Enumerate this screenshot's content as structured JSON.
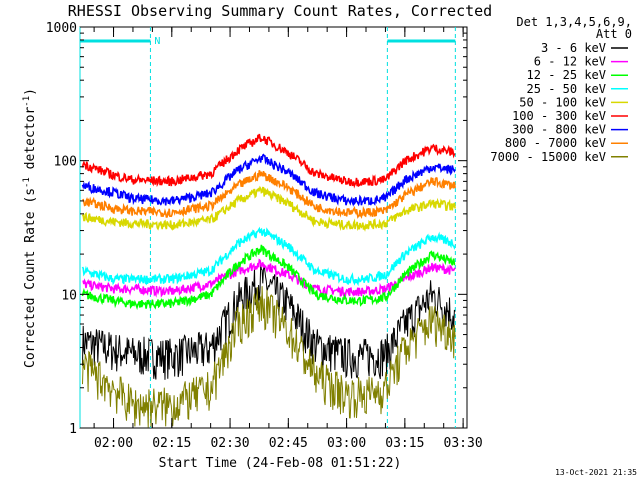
{
  "chart_data": {
    "type": "line",
    "title": "RHESSI Observing Summary Count Rates, Corrected",
    "xlabel": "Start Time (24-Feb-08 01:51:22)",
    "ylabel": "Corrected Count Rate (s⁻¹ detector⁻¹)",
    "ylabel_parts": {
      "a": "Corrected Count Rate (s",
      "sup1": "-1",
      "b": " detector",
      "sup2": "-1",
      "c": ")"
    },
    "y_scale": "log",
    "ylim": [
      1,
      1000
    ],
    "xlim": [
      "01:51:22",
      "03:31:00"
    ],
    "y_ticks": [
      "1",
      "10",
      "100",
      "1000"
    ],
    "x_ticks": [
      "02:00",
      "02:15",
      "02:30",
      "02:45",
      "03:00",
      "03:15",
      "03:30"
    ],
    "legend": {
      "placement": "right",
      "header": [
        "Det 1,3,4,5,6,9,",
        "Att 0"
      ]
    },
    "timestamp": "13-Oct-2021 21:35",
    "annotations": [
      {
        "label": "N",
        "type": "night",
        "x_start": "01:51:22",
        "x_end": "02:09:30"
      },
      {
        "label": "",
        "type": "night",
        "x_start": "03:10:30",
        "x_end": "03:28:00"
      }
    ],
    "series": [
      {
        "name": "3 - 6 keV",
        "color": "#000000",
        "x": [
          "01:52",
          "02:00",
          "02:05",
          "02:15",
          "02:25",
          "02:32",
          "02:38",
          "02:45",
          "02:52",
          "03:00",
          "03:05",
          "03:10",
          "03:15",
          "03:22",
          "03:28"
        ],
        "values": [
          4.5,
          3.9,
          3.6,
          3.5,
          4.0,
          9.0,
          13.0,
          8.5,
          4.2,
          3.5,
          3.5,
          3.6,
          6.0,
          10.0,
          7.0
        ]
      },
      {
        "name": "6 - 12 keV",
        "color": "#ff00ff",
        "x": [
          "01:52",
          "02:00",
          "02:05",
          "02:15",
          "02:25",
          "02:32",
          "02:38",
          "02:45",
          "02:52",
          "03:00",
          "03:05",
          "03:10",
          "03:15",
          "03:22",
          "03:28"
        ],
        "values": [
          12.0,
          11.0,
          11.0,
          10.5,
          12.0,
          15.0,
          17.0,
          14.0,
          11.0,
          10.5,
          10.5,
          11.0,
          13.0,
          16.0,
          15.0
        ]
      },
      {
        "name": "12 - 25 keV",
        "color": "#00ff00",
        "x": [
          "01:52",
          "02:00",
          "02:05",
          "02:15",
          "02:25",
          "02:32",
          "02:38",
          "02:45",
          "02:52",
          "03:00",
          "03:05",
          "03:10",
          "03:15",
          "03:22",
          "03:28"
        ],
        "values": [
          10.0,
          9.0,
          8.5,
          8.5,
          10.0,
          17.0,
          22.0,
          16.0,
          10.0,
          9.0,
          9.0,
          9.5,
          14.0,
          20.0,
          17.0
        ]
      },
      {
        "name": "25 - 50 keV",
        "color": "#00ffff",
        "x": [
          "01:52",
          "02:00",
          "02:05",
          "02:15",
          "02:25",
          "02:32",
          "02:38",
          "02:45",
          "02:52",
          "03:00",
          "03:05",
          "03:10",
          "03:15",
          "03:22",
          "03:28"
        ],
        "values": [
          15.0,
          13.0,
          13.0,
          13.0,
          15.0,
          24.0,
          30.0,
          23.0,
          15.0,
          13.0,
          13.0,
          14.0,
          20.0,
          27.0,
          24.0
        ]
      },
      {
        "name": "50 - 100 keV",
        "color": "#d8d800",
        "x": [
          "01:52",
          "02:00",
          "02:05",
          "02:15",
          "02:25",
          "02:32",
          "02:38",
          "02:45",
          "02:52",
          "03:00",
          "03:05",
          "03:10",
          "03:15",
          "03:22",
          "03:28"
        ],
        "values": [
          38.0,
          35.0,
          34.0,
          33.0,
          36.0,
          50.0,
          60.0,
          48.0,
          35.0,
          33.0,
          33.0,
          34.0,
          42.0,
          48.0,
          45.0
        ]
      },
      {
        "name": "100 - 300 keV",
        "color": "#ff0000",
        "x": [
          "01:52",
          "02:00",
          "02:05",
          "02:15",
          "02:25",
          "02:32",
          "02:38",
          "02:45",
          "02:52",
          "03:00",
          "03:05",
          "03:10",
          "03:15",
          "03:22",
          "03:28"
        ],
        "values": [
          95.0,
          78.0,
          72.0,
          70.0,
          80.0,
          120.0,
          150.0,
          115.0,
          80.0,
          70.0,
          70.0,
          72.0,
          100.0,
          125.0,
          115.0
        ]
      },
      {
        "name": "300 - 800 keV",
        "color": "#0000ff",
        "x": [
          "01:52",
          "02:00",
          "02:05",
          "02:15",
          "02:25",
          "02:32",
          "02:38",
          "02:45",
          "02:52",
          "03:00",
          "03:05",
          "03:10",
          "03:15",
          "03:22",
          "03:28"
        ],
        "values": [
          65.0,
          58.0,
          52.0,
          50.0,
          57.0,
          85.0,
          105.0,
          82.0,
          57.0,
          50.0,
          50.0,
          52.0,
          72.0,
          90.0,
          85.0
        ]
      },
      {
        "name": "800 - 7000 keV",
        "color": "#ff8000",
        "x": [
          "01:52",
          "02:00",
          "02:05",
          "02:15",
          "02:25",
          "02:32",
          "02:38",
          "02:45",
          "02:52",
          "03:00",
          "03:05",
          "03:10",
          "03:15",
          "03:22",
          "03:28"
        ],
        "values": [
          50.0,
          44.0,
          42.0,
          41.0,
          46.0,
          65.0,
          80.0,
          63.0,
          45.0,
          41.0,
          41.0,
          42.0,
          55.0,
          70.0,
          65.0
        ]
      },
      {
        "name": "7000 - 15000 keV",
        "color": "#808000",
        "x": [
          "01:52",
          "02:00",
          "02:05",
          "02:15",
          "02:25",
          "02:32",
          "02:38",
          "02:45",
          "02:52",
          "03:00",
          "03:05",
          "03:10",
          "03:15",
          "03:22",
          "03:28"
        ],
        "values": [
          3.0,
          2.0,
          1.5,
          1.5,
          2.0,
          6.0,
          9.0,
          5.5,
          2.5,
          1.8,
          1.8,
          2.0,
          4.0,
          6.5,
          5.0
        ]
      }
    ]
  }
}
